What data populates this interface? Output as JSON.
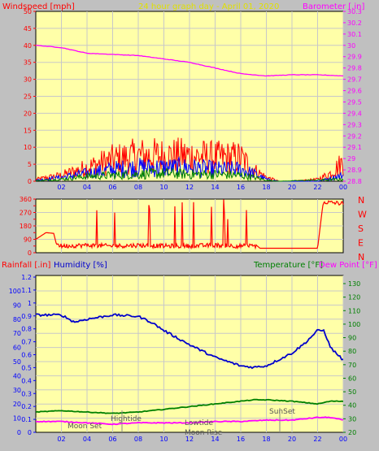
{
  "header": {
    "left": "Windspeed [mph]",
    "center": "24 hour graph day - April 01, 2020",
    "right": "Barometer [.in]"
  },
  "colors": {
    "background": "#c0c0c0",
    "plot": "#ffffa8",
    "grid": "#c8c8c8",
    "wind": "#ff0000",
    "gust_blue": "#0000ff",
    "avg_green": "#008000",
    "barometer": "#ff00ff",
    "humidity": "#0000cc",
    "temperature": "#008000",
    "dewpoint": "#ff00ff",
    "rain": "#ff0000",
    "direction_labels": "#ff0000",
    "left_axis_rain": "#0000ff",
    "right_axis_temp": "#008000",
    "axis_text_red": "#ff0000",
    "title_color": "#e0e000"
  },
  "chart_data": [
    {
      "id": "wind",
      "type": "line",
      "ylabel": "Windspeed [mph]",
      "y2label": "Barometer [.in]",
      "xticks": [
        "02",
        "04",
        "06",
        "08",
        "10",
        "12",
        "14",
        "16",
        "18",
        "20",
        "22",
        "00"
      ],
      "ylim": [
        0,
        50
      ],
      "yticks": [
        0,
        5,
        10,
        15,
        20,
        25,
        30,
        35,
        40,
        45,
        50
      ],
      "y2lim": [
        28.8,
        30.3
      ],
      "y2ticks": [
        "28.8",
        "28.9",
        "29",
        "29.1",
        "29.2",
        "29.3",
        "29.4",
        "29.5",
        "29.6",
        "29.7",
        "29.8",
        "29.9",
        "30",
        "30.1",
        "30.2",
        "30.3"
      ],
      "series": [
        {
          "values_x": [
            0,
            2,
            4,
            6,
            8,
            10,
            12,
            14,
            16,
            17,
            18,
            19,
            20,
            22,
            23,
            24
          ],
          "values_y": [
            1,
            3,
            7,
            11,
            13,
            13,
            13,
            12,
            12,
            6,
            2,
            0,
            0,
            1,
            4,
            10
          ]
        },
        {
          "values_x": [
            0,
            2,
            4,
            6,
            8,
            10,
            12,
            14,
            16,
            17,
            18,
            19,
            22,
            24
          ],
          "values_y": [
            0.5,
            2,
            4,
            6,
            7,
            7,
            7,
            6,
            6,
            4,
            1,
            0,
            0,
            3
          ]
        },
        {
          "values_x": [
            0,
            2,
            4,
            6,
            8,
            10,
            12,
            14,
            16,
            17,
            18,
            19,
            24
          ],
          "values_y": [
            0.2,
            1,
            2.5,
            3,
            3.5,
            4,
            3.5,
            3.5,
            3,
            2,
            0.5,
            0,
            1
          ]
        },
        {
          "values_x": [
            0,
            2,
            4,
            6,
            8,
            10,
            12,
            14,
            16,
            18,
            20,
            22,
            24
          ],
          "values_y": [
            30.0,
            29.98,
            29.93,
            29.92,
            29.91,
            29.88,
            29.85,
            29.8,
            29.75,
            29.73,
            29.74,
            29.74,
            29.73
          ]
        }
      ]
    },
    {
      "id": "direction",
      "type": "line",
      "ylim": [
        0,
        360
      ],
      "yticks": [
        "0",
        "45",
        "90",
        "135",
        "180",
        "225",
        "270",
        "315",
        "360"
      ],
      "direction_labels": [
        "N",
        "W",
        "S",
        "E",
        "N"
      ],
      "series": [
        {
          "values_x": [
            0,
            0.8,
            1.4,
            1.6,
            2,
            4,
            6,
            8,
            10,
            12,
            14,
            16,
            17.3,
            17.5,
            20,
            22,
            22.4,
            22.5,
            24
          ],
          "values_y": [
            90,
            135,
            130,
            60,
            45,
            50,
            45,
            50,
            45,
            45,
            50,
            45,
            45,
            30,
            30,
            30,
            315,
            340,
            330
          ]
        }
      ]
    },
    {
      "id": "weather",
      "type": "line",
      "left_label_rain": "Rainfall [.in]",
      "left_label_humidity": "Humidity [%]",
      "right_label_temp": "Temperature [°F]",
      "right_label_dew": "Dew Point [°F]",
      "xticks": [
        "02",
        "04",
        "06",
        "08",
        "10",
        "12",
        "14",
        "16",
        "18",
        "20",
        "22",
        "00"
      ],
      "rain_ticks": [
        "0",
        "0.1",
        "0.2",
        "0.3",
        "0.4",
        "0.5",
        "0.6",
        "0.7",
        "0.8",
        "0.9",
        "1",
        "1.1",
        "1.2"
      ],
      "humidity_ticks": [
        "0",
        "10",
        "20",
        "30",
        "40",
        "50",
        "60",
        "70",
        "80",
        "90",
        "100"
      ],
      "temp_ticks": [
        "20",
        "30",
        "40",
        "50",
        "60",
        "70",
        "80",
        "90",
        "100",
        "110",
        "120",
        "130"
      ],
      "annotations": {
        "moon_set": "Moon Set",
        "high_tide": "Hightide",
        "low_tide": "Lowtide",
        "moon_rise": "Moon Rise",
        "sun_set": "SunSet"
      },
      "series": [
        {
          "name": "humidity",
          "values_x": [
            0,
            2,
            3,
            4,
            6,
            8,
            9,
            10,
            12,
            14,
            16,
            17,
            18,
            20,
            21,
            22,
            22.5,
            23,
            24
          ],
          "values_y": [
            83,
            83,
            78,
            80,
            83,
            82,
            78,
            72,
            62,
            53,
            47,
            46,
            47,
            56,
            63,
            72,
            72,
            60,
            51
          ]
        },
        {
          "name": "temperature",
          "values_x": [
            0,
            2,
            4,
            6,
            8,
            10,
            12,
            14,
            16,
            17,
            18,
            20,
            22,
            23,
            24
          ],
          "values_y": [
            35,
            36,
            35,
            34,
            35,
            37,
            39,
            41,
            43,
            44,
            44,
            43,
            41,
            43,
            43
          ]
        },
        {
          "name": "dewpoint",
          "values_x": [
            0,
            2,
            4,
            6,
            8,
            10,
            12,
            14,
            16,
            18,
            20,
            22,
            23,
            24
          ],
          "values_y": [
            28,
            28,
            27,
            26,
            27,
            27,
            27,
            28,
            28,
            29,
            29,
            31,
            31,
            29
          ]
        }
      ]
    }
  ]
}
